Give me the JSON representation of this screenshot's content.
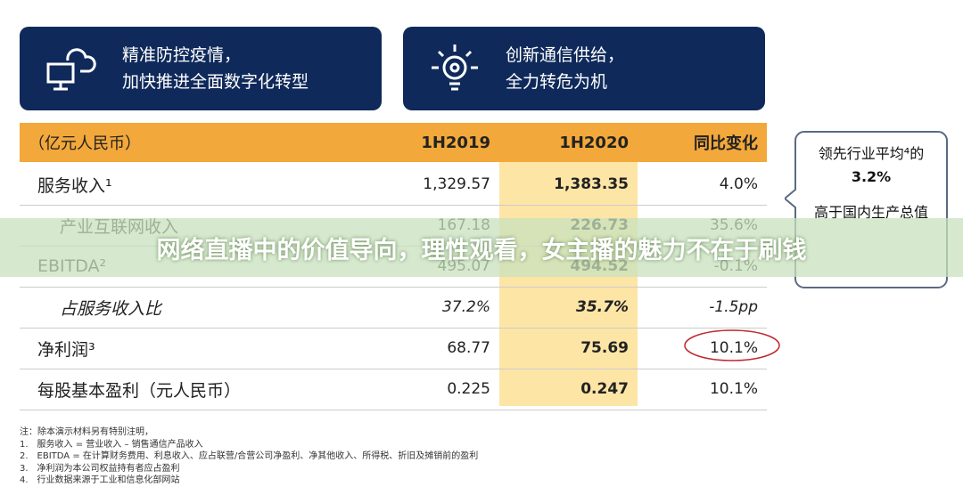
{
  "header": {
    "boxes": [
      {
        "lines": [
          "精准防控疫情，",
          "加快推进全面数字化转型"
        ]
      },
      {
        "lines": [
          "创新通信供给，",
          "全力转危为机"
        ]
      }
    ]
  },
  "table": {
    "columns": [
      "（亿元人民币）",
      "1H2019",
      "1H2020",
      "同比变化"
    ],
    "rows": [
      [
        "服务收入¹",
        "1,329.57",
        "1,383.35",
        "4.0%"
      ],
      [
        "产业互联网收入",
        "167.18",
        "226.73",
        "35.6%"
      ],
      [
        "EBITDA²",
        "495.07",
        "494.52",
        "-0.1%"
      ],
      [
        "占服务收入比",
        "37.2%",
        "35.7%",
        "-1.5pp"
      ],
      [
        "净利润³",
        "68.77",
        "75.69",
        "10.1%"
      ],
      [
        "每股基本盈利（元人民币）",
        "0.225",
        "0.247",
        "10.1%"
      ]
    ]
  },
  "callout": {
    "lines": [
      "领先行业平均⁴的",
      "3.2%",
      "高于国内生产总值"
    ]
  },
  "banner": "网络直播中的价值导向，理性观看，女主播的魅力不在于刷钱",
  "notes": [
    "注：除本演示材料另有特别注明，",
    "1.　服务收入 = 营业收入 – 销售通信产品收入",
    "2.　EBITDA = 在计算财务费用、利息收入、应占联营/合营公司净盈利、净其他收入、所得税、折旧及摊销前的盈利",
    "3.　净利润为本公司权益持有者应占盈利",
    "4.　行业数据来源于工业和信息化部网站"
  ]
}
